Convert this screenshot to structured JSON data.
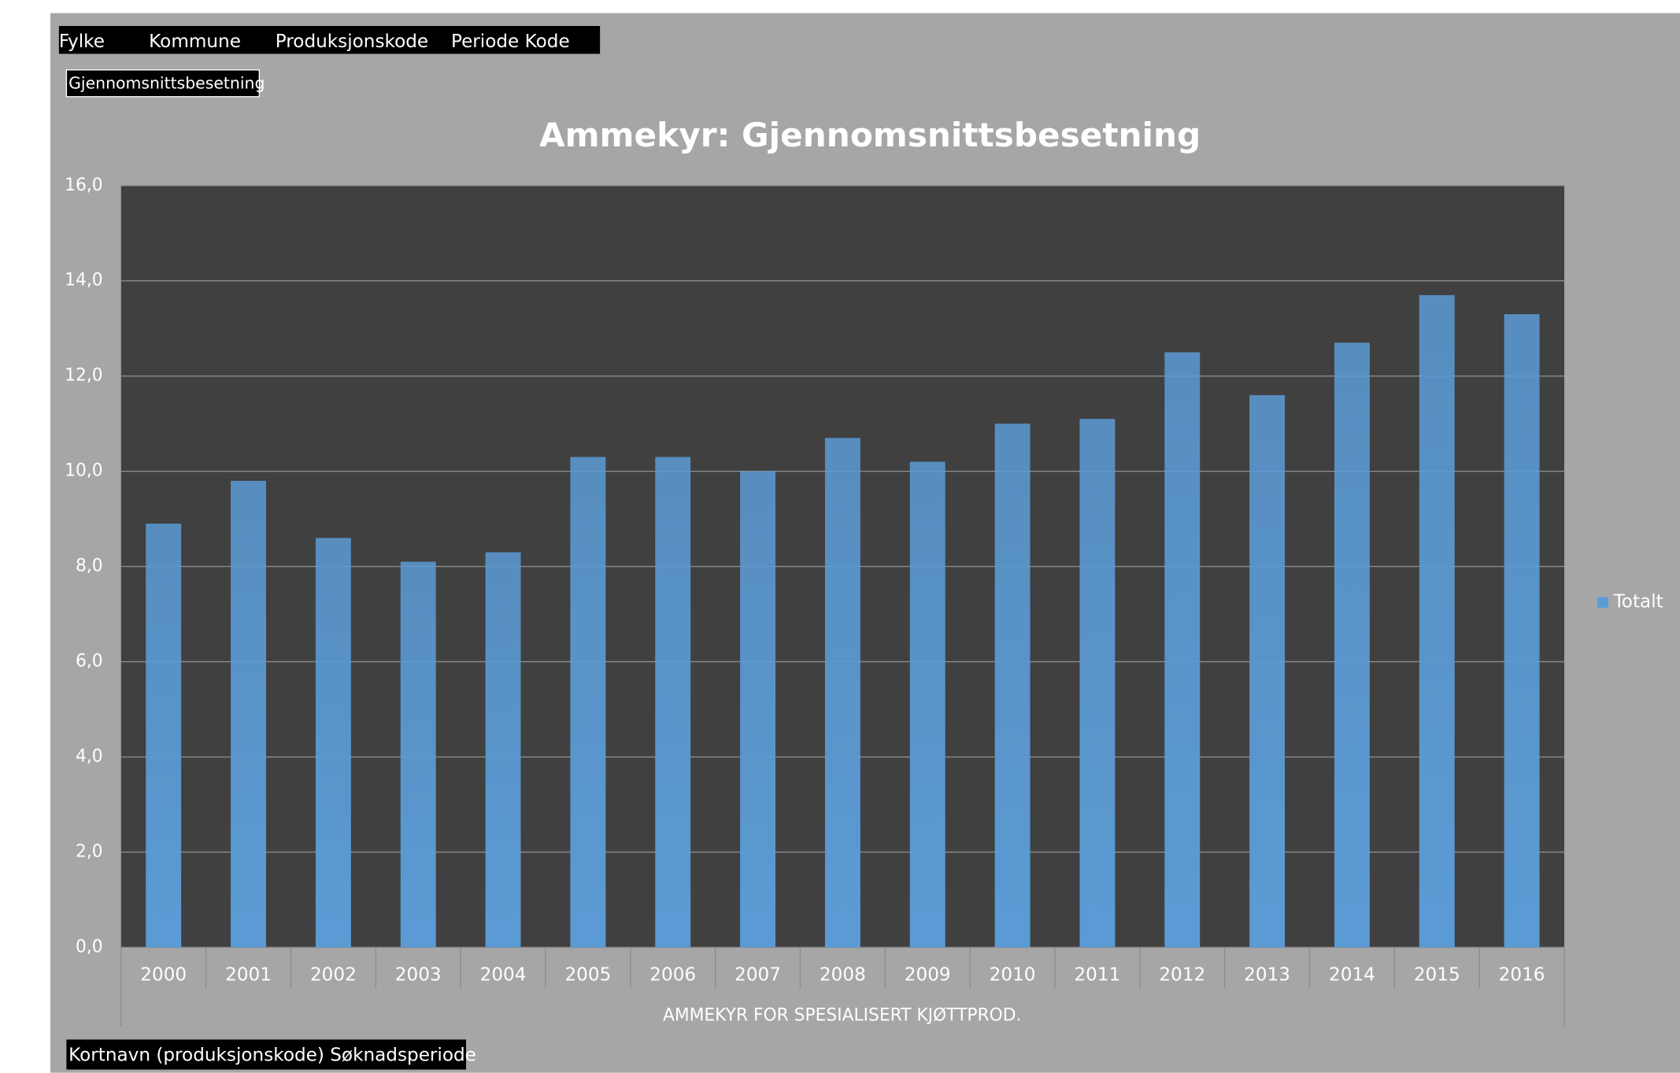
{
  "field_buttons": {
    "filters": [
      "Fylke",
      "Kommune",
      "Produksjonskode",
      "Periode Kode"
    ],
    "values": [
      "Gjennomsnittsbesetning"
    ],
    "rows": [
      "Kortnavn (produksjonskode) Søknadsperiode"
    ]
  },
  "chart_data": {
    "type": "bar",
    "title": "Ammekyr: Gjennomsnittsbesetning",
    "categories": [
      "2000",
      "2001",
      "2002",
      "2003",
      "2004",
      "2005",
      "2006",
      "2007",
      "2008",
      "2009",
      "2010",
      "2011",
      "2012",
      "2013",
      "2014",
      "2015",
      "2016"
    ],
    "xlabel": "AMMEKYR FOR SPESIALISERT KJØTTPROD.",
    "series": [
      {
        "name": "Totalt",
        "color": "#5b9bd5",
        "values": [
          8.9,
          9.8,
          8.6,
          8.1,
          8.3,
          10.3,
          10.3,
          10.0,
          10.7,
          10.2,
          11.0,
          11.1,
          12.5,
          11.6,
          12.7,
          13.7,
          13.3
        ]
      }
    ],
    "ylim": [
      0,
      16
    ],
    "yticks": [
      {
        "value": 0,
        "label": "0,0"
      },
      {
        "value": 2,
        "label": "2,0"
      },
      {
        "value": 4,
        "label": "4,0"
      },
      {
        "value": 6,
        "label": "6,0"
      },
      {
        "value": 8,
        "label": "8,0"
      },
      {
        "value": 10,
        "label": "10,0"
      },
      {
        "value": 12,
        "label": "12,0"
      },
      {
        "value": 14,
        "label": "14,0"
      },
      {
        "value": 16,
        "label": "16,0"
      }
    ],
    "grid": true,
    "legend": "right"
  }
}
